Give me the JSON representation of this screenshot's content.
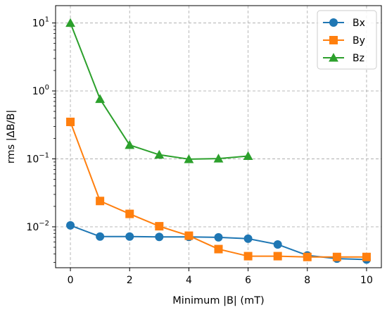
{
  "chart_data": {
    "type": "line",
    "title": "",
    "xlabel": "Minimum |B| (mT)",
    "ylabel": "rms |ΔB/B|",
    "yscale": "log",
    "xlim": [
      -0.5,
      10.5
    ],
    "ylim": [
      0.0025,
      18
    ],
    "x_ticks": [
      0,
      2,
      4,
      6,
      8,
      10
    ],
    "y_ticks": [
      {
        "value": 0.01,
        "base": "10",
        "exp": "−2"
      },
      {
        "value": 0.1,
        "base": "10",
        "exp": "−1"
      },
      {
        "value": 1,
        "base": "10",
        "exp": "0"
      },
      {
        "value": 10,
        "base": "10",
        "exp": "1"
      }
    ],
    "grid": true,
    "legend_position": "top-right",
    "series": [
      {
        "name": "Bx",
        "color": "#1f77b4",
        "marker": "circle",
        "x": [
          0,
          1,
          2,
          3,
          4,
          5,
          6,
          7,
          8,
          9,
          10
        ],
        "values": [
          0.0105,
          0.0072,
          0.0072,
          0.0071,
          0.0071,
          0.007,
          0.0067,
          0.0055,
          0.0038,
          0.0034,
          0.0033
        ]
      },
      {
        "name": "By",
        "color": "#ff7f0e",
        "marker": "square",
        "x": [
          0,
          1,
          2,
          3,
          4,
          5,
          6,
          7,
          8,
          9,
          10
        ],
        "values": [
          0.35,
          0.024,
          0.0155,
          0.0102,
          0.0074,
          0.0047,
          0.0037,
          0.0037,
          0.0036,
          0.0036,
          0.0036
        ]
      },
      {
        "name": "Bz",
        "color": "#2ca02c",
        "marker": "triangle",
        "x": [
          0,
          1,
          2,
          3,
          4,
          5,
          6
        ],
        "values": [
          10,
          0.76,
          0.16,
          0.115,
          0.099,
          0.101,
          0.11
        ]
      }
    ]
  }
}
